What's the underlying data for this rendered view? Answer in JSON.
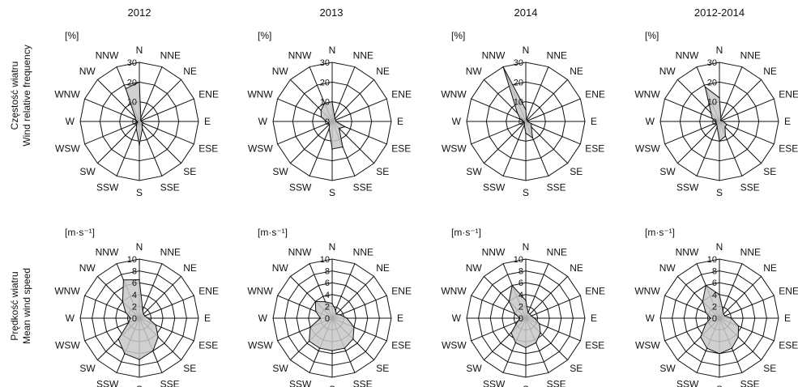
{
  "columns": [
    "2012",
    "2013",
    "2014",
    "2012-2014"
  ],
  "rows": [
    {
      "label_pl": "Częstość wiatru",
      "label_en": "Wind relative frequency",
      "unit": "[%]"
    },
    {
      "label_pl": "Prędkość wiatru",
      "label_en": "Mean wind speed",
      "unit": "[m·s⁻¹]"
    }
  ],
  "directions": [
    "N",
    "NNE",
    "NE",
    "ENE",
    "E",
    "ESE",
    "SE",
    "SSE",
    "S",
    "SSW",
    "SW",
    "WSW",
    "W",
    "WNW",
    "NW",
    "NNW"
  ],
  "chart_data": [
    {
      "type": "radar",
      "title": "2012",
      "row": "Wind relative frequency",
      "unit": "[%]",
      "rlim": [
        0,
        30
      ],
      "ticks": [
        0,
        10,
        20,
        30
      ],
      "categories": [
        "N",
        "NNE",
        "NE",
        "ENE",
        "E",
        "ESE",
        "SE",
        "SSE",
        "S",
        "SSW",
        "SW",
        "WSW",
        "W",
        "WNW",
        "NW",
        "NNW"
      ],
      "values": [
        20,
        2,
        1,
        1,
        1,
        2,
        2,
        4,
        12,
        4,
        2,
        1,
        1,
        2,
        3,
        18
      ]
    },
    {
      "type": "radar",
      "title": "2013",
      "row": "Wind relative frequency",
      "unit": "[%]",
      "rlim": [
        0,
        30
      ],
      "ticks": [
        0,
        10,
        20,
        30
      ],
      "categories": [
        "N",
        "NNE",
        "NE",
        "ENE",
        "E",
        "ESE",
        "SE",
        "SSE",
        "S",
        "SSW",
        "SW",
        "WSW",
        "W",
        "WNW",
        "NW",
        "NNW"
      ],
      "values": [
        10,
        3,
        2,
        2,
        2,
        7,
        5,
        14,
        14,
        4,
        2,
        2,
        3,
        6,
        8,
        10
      ]
    },
    {
      "type": "radar",
      "title": "2014",
      "row": "Wind relative frequency",
      "unit": "[%]",
      "rlim": [
        0,
        30
      ],
      "ticks": [
        0,
        10,
        20,
        30
      ],
      "categories": [
        "N",
        "NNE",
        "NE",
        "ENE",
        "E",
        "ESE",
        "SE",
        "SSE",
        "S",
        "SSW",
        "SW",
        "WSW",
        "W",
        "WNW",
        "NW",
        "NNW"
      ],
      "values": [
        6,
        1,
        1,
        1,
        1,
        3,
        4,
        9,
        6,
        2,
        1,
        1,
        1,
        3,
        6,
        30
      ]
    },
    {
      "type": "radar",
      "title": "2012-2014",
      "row": "Wind relative frequency",
      "unit": "[%]",
      "rlim": [
        0,
        30
      ],
      "ticks": [
        0,
        10,
        20,
        30
      ],
      "categories": [
        "N",
        "NNE",
        "NE",
        "ENE",
        "E",
        "ESE",
        "SE",
        "SSE",
        "S",
        "SSW",
        "SW",
        "WSW",
        "W",
        "WNW",
        "NW",
        "NNW"
      ],
      "values": [
        12,
        2,
        1,
        1,
        2,
        4,
        4,
        8,
        10,
        3,
        2,
        2,
        2,
        4,
        6,
        19
      ]
    },
    {
      "type": "radar",
      "title": "2012",
      "row": "Mean wind speed",
      "unit": "[m·s⁻¹]",
      "rlim": [
        0,
        10
      ],
      "ticks": [
        0,
        2,
        4,
        6,
        8,
        10
      ],
      "categories": [
        "N",
        "NNE",
        "NE",
        "ENE",
        "E",
        "ESE",
        "SE",
        "SSE",
        "S",
        "SSW",
        "SW",
        "WSW",
        "W",
        "WNW",
        "NW",
        "NNW"
      ],
      "values": [
        6.5,
        1.5,
        1,
        1,
        1.5,
        3,
        4.5,
        6,
        7,
        6.5,
        5,
        2,
        1.5,
        2.5,
        4,
        7
      ]
    },
    {
      "type": "radar",
      "title": "2013",
      "row": "Mean wind speed",
      "unit": "[m·s⁻¹]",
      "rlim": [
        0,
        10
      ],
      "ticks": [
        0,
        2,
        4,
        6,
        8,
        10
      ],
      "categories": [
        "N",
        "NNE",
        "NE",
        "ENE",
        "E",
        "ESE",
        "SE",
        "SSE",
        "S",
        "SSW",
        "SW",
        "WSW",
        "W",
        "WNW",
        "NW",
        "NNW"
      ],
      "values": [
        2.5,
        1.5,
        1,
        1.5,
        2.5,
        4,
        5,
        5.5,
        5.5,
        5.5,
        5.5,
        4,
        2,
        3,
        4,
        3
      ]
    },
    {
      "type": "radar",
      "title": "2014",
      "row": "Mean wind speed",
      "unit": "[m·s⁻¹]",
      "rlim": [
        0,
        10
      ],
      "ticks": [
        0,
        2,
        4,
        6,
        8,
        10
      ],
      "categories": [
        "N",
        "NNE",
        "NE",
        "ENE",
        "E",
        "ESE",
        "SE",
        "SSE",
        "S",
        "SSW",
        "SW",
        "WSW",
        "W",
        "WNW",
        "NW",
        "NNW"
      ],
      "values": [
        3,
        1,
        1,
        1,
        1.5,
        2.5,
        3.5,
        4.5,
        5,
        4.5,
        3.5,
        1.5,
        1,
        2,
        4,
        6
      ]
    },
    {
      "type": "radar",
      "title": "2012-2014",
      "row": "Mean wind speed",
      "unit": "[m·s⁻¹]",
      "rlim": [
        0,
        10
      ],
      "ticks": [
        0,
        2,
        4,
        6,
        8,
        10
      ],
      "categories": [
        "N",
        "NNE",
        "NE",
        "ENE",
        "E",
        "ESE",
        "SE",
        "SSE",
        "S",
        "SSW",
        "SW",
        "WSW",
        "W",
        "WNW",
        "NW",
        "NNW"
      ],
      "values": [
        4,
        1.5,
        1,
        1,
        2,
        3.5,
        4.5,
        5.5,
        6,
        5.5,
        4.5,
        2.5,
        1.5,
        2.5,
        4,
        6
      ]
    }
  ]
}
